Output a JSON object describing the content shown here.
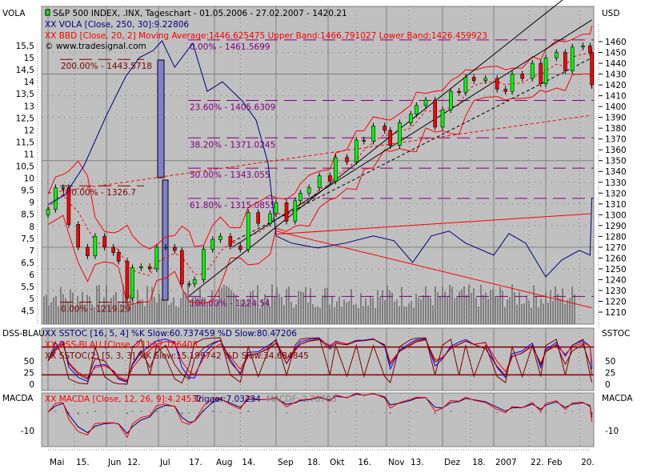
{
  "left_axis_labels": {
    "main": "VOLA",
    "dss": "DSS-BLAU",
    "macd": "MACDA"
  },
  "right_axis_labels": {
    "main": "USD",
    "dss": "SSTOC",
    "macd": "MACDA"
  },
  "legend": {
    "title": "S&P 500 INDEX, .INX, Tageschart - 01.05.2006 - 27.02.2007 - 1420.21",
    "vola": "XX VOLA [Close, 250, 30]:9.22806",
    "bbd": "XX BBD [Close, 20, 2] Moving Average:1446.625475 Upper Band:1466.791027 Lower Band:1426.459923",
    "copyright": "© www.tradesignal.com",
    "sstoc": "XX SSTOC [16, 5, 4] %K Slow:60.737459 %D Slow:80.47206",
    "dss": "XX DSS-BLAU [Close, 21]:62.186408",
    "sstoc2": "XX SSTOC(2) [5, 3, 3] %K Slow:15.199742 %D Slow:34.684845",
    "macd_name": "XX MACDA [Close, 12, 26, 9]:4.24532",
    "macd_trigger": "Trigger:7.03234",
    "macd_f": "MACDF:-2.78703"
  },
  "colors": {
    "panel_bg": "#c0c0c0",
    "up": "#00ff00",
    "down": "#ff0000",
    "vola": "#000080",
    "band": "#ff0000",
    "fib": "#800080",
    "fib_old": "#800000",
    "volume": "#808080",
    "sstoc": "#0000ff",
    "dss": "#ff0000",
    "sstoc2": "#800000",
    "macd": "#ff0000",
    "trigger": "#000080"
  },
  "chart_data": [
    {
      "type": "candlestick",
      "title": "S&P 500 INDEX, .INX, Tageschart",
      "ylabel": "USD",
      "ylim": [
        1205,
        1470
      ],
      "y_ticks": [
        "1460",
        "1450",
        "1440",
        "1430",
        "1420",
        "1410",
        "1400",
        "1390",
        "1380",
        "1370",
        "1360",
        "1350",
        "1340",
        "1330",
        "1320",
        "1310",
        "1300",
        "1290",
        "1280",
        "1270",
        "1260",
        "1250",
        "1240",
        "1230",
        "1220",
        "1210"
      ],
      "secondary_y_ticks": [
        "15,5",
        "15",
        "14,5",
        "14",
        "13,5",
        "13",
        "12,5",
        "12",
        "11,5",
        "11",
        "10,5",
        "10",
        "9,5",
        "9",
        "8,5",
        "8",
        "7,5",
        "7",
        "6,5",
        "6",
        "5,5",
        "5",
        "4,5"
      ],
      "secondary_ylim": [
        4.0,
        16.0
      ],
      "x_ticks": [
        {
          "date": "2006-05-01",
          "label": "Mai"
        },
        {
          "date": "2006-05-15",
          "label": "15."
        },
        {
          "date": "2006-06-01",
          "label": "Jun"
        },
        {
          "date": "2006-06-12",
          "label": "12."
        },
        {
          "date": "2006-07-01",
          "label": "Jul"
        },
        {
          "date": "2006-07-17",
          "label": "17."
        },
        {
          "date": "2006-08-01",
          "label": "Aug"
        },
        {
          "date": "2006-08-14",
          "label": "14."
        },
        {
          "date": "2006-09-01",
          "label": "Sep"
        },
        {
          "date": "2006-09-18",
          "label": "18."
        },
        {
          "date": "2006-10-01",
          "label": "Okt"
        },
        {
          "date": "2006-10-16",
          "label": "16."
        },
        {
          "date": "2006-11-01",
          "label": "Nov"
        },
        {
          "date": "2006-11-13",
          "label": "13."
        },
        {
          "date": "2006-12-01",
          "label": "Dez"
        },
        {
          "date": "2006-12-18",
          "label": "18."
        },
        {
          "date": "2007-01-01",
          "label": "2007"
        },
        {
          "date": "2007-01-22",
          "label": "22."
        },
        {
          "date": "2007-02-01",
          "label": "Feb"
        },
        {
          "date": "2007-02-20",
          "label": "20."
        }
      ],
      "series": [
        {
          "name": "S&P 500 INDEX",
          "dates": [
            "2006-05-01",
            "2006-05-05",
            "2006-05-09",
            "2006-05-12",
            "2006-05-17",
            "2006-05-22",
            "2006-05-26",
            "2006-05-31",
            "2006-06-05",
            "2006-06-08",
            "2006-06-13",
            "2006-06-16",
            "2006-06-21",
            "2006-06-26",
            "2006-06-30",
            "2006-07-05",
            "2006-07-10",
            "2006-07-14",
            "2006-07-18",
            "2006-07-21",
            "2006-07-26",
            "2006-07-31",
            "2006-08-04",
            "2006-08-09",
            "2006-08-14",
            "2006-08-18",
            "2006-08-23",
            "2006-08-29",
            "2006-09-01",
            "2006-09-07",
            "2006-09-12",
            "2006-09-15",
            "2006-09-20",
            "2006-09-26",
            "2006-10-02",
            "2006-10-05",
            "2006-10-11",
            "2006-10-16",
            "2006-10-20",
            "2006-10-25",
            "2006-10-31",
            "2006-11-03",
            "2006-11-08",
            "2006-11-14",
            "2006-11-17",
            "2006-11-22",
            "2006-11-27",
            "2006-12-01",
            "2006-12-06",
            "2006-12-11",
            "2006-12-15",
            "2006-12-20",
            "2006-12-27",
            "2007-01-03",
            "2007-01-08",
            "2007-01-12",
            "2007-01-18",
            "2007-01-24",
            "2007-01-29",
            "2007-02-01",
            "2007-02-07",
            "2007-02-12",
            "2007-02-16",
            "2007-02-22",
            "2007-02-26",
            "2007-02-27"
          ],
          "close": [
            1305,
            1325,
            1325,
            1291,
            1270,
            1262,
            1280,
            1270,
            1265,
            1257,
            1223,
            1251,
            1252,
            1250,
            1270,
            1270,
            1267,
            1236,
            1236,
            1240,
            1268,
            1277,
            1280,
            1271,
            1268,
            1302,
            1292,
            1301,
            1311,
            1294,
            1313,
            1320,
            1325,
            1336,
            1331,
            1353,
            1349,
            1369,
            1368,
            1382,
            1378,
            1364,
            1385,
            1393,
            1401,
            1406,
            1381,
            1397,
            1414,
            1413,
            1427,
            1424,
            1426,
            1416,
            1414,
            1430,
            1426,
            1440,
            1421,
            1445,
            1450,
            1433,
            1455,
            1456,
            1450,
            1420.21
          ]
        },
        {
          "name": "VOLA",
          "dates": [
            "2006-05-01",
            "2006-05-10",
            "2006-05-20",
            "2006-06-01",
            "2006-06-12",
            "2006-06-20",
            "2006-06-28",
            "2006-07-03",
            "2006-07-10",
            "2006-07-20",
            "2006-07-28",
            "2006-08-05",
            "2006-08-15",
            "2006-08-22",
            "2006-08-28",
            "2006-09-01",
            "2006-09-10",
            "2006-09-25",
            "2006-10-10",
            "2006-10-25",
            "2006-11-05",
            "2006-11-15",
            "2006-11-25",
            "2006-12-05",
            "2006-12-15",
            "2007-01-01",
            "2007-01-10",
            "2007-01-20",
            "2007-02-01",
            "2007-02-10",
            "2007-02-20",
            "2007-02-26",
            "2007-02-27"
          ],
          "values": [
            8.9,
            9.3,
            10.5,
            12.6,
            14.2,
            15.0,
            15.3,
            15.7,
            14.6,
            15.6,
            13.6,
            14.0,
            13.2,
            12.4,
            10.6,
            7.6,
            7.3,
            7.1,
            7.3,
            7.6,
            7.4,
            6.5,
            7.6,
            7.8,
            7.3,
            6.8,
            7.7,
            7.3,
            5.9,
            6.6,
            7.0,
            6.8,
            9.2
          ]
        }
      ],
      "fibonacci": [
        {
          "label": "0.00% - 1461.5699",
          "value": 1461.5699
        },
        {
          "label": "23.60% - 1405.6309",
          "value": 1405.6309
        },
        {
          "label": "38.20% - 1371.0245",
          "value": 1371.0245
        },
        {
          "label": "50.00% - 1343.055",
          "value": 1343.055
        },
        {
          "label": "61.80% - 1315.0855",
          "value": 1315.0855
        },
        {
          "label": "100.00% - 1224.54",
          "value": 1224.54
        }
      ],
      "fibonacci_old": [
        {
          "label": "200.00% - 1443.5718",
          "value": 1443.5718
        },
        {
          "label": "100.00% - 1326.7",
          "value": 1326.7
        },
        {
          "label": "0.00% - 1219.29",
          "value": 1219.29
        }
      ],
      "trendlines": [
        {
          "color": "#000000",
          "style": "solid",
          "from": [
            "2006-07-18",
            1225
          ],
          "to": [
            "2007-02-27",
            1520
          ]
        },
        {
          "color": "#000000",
          "style": "solid",
          "from": [
            "2006-08-10",
            1270
          ],
          "to": [
            "2007-02-27",
            1480
          ]
        },
        {
          "color": "#000000",
          "style": "dashed",
          "from": [
            "2006-08-10",
            1275
          ],
          "to": [
            "2007-02-27",
            1445
          ]
        },
        {
          "color": "#ff0000",
          "style": "dashed",
          "from": [
            "2006-05-01",
            1320
          ],
          "to": [
            "2007-02-27",
            1392
          ]
        },
        {
          "color": "#ff0000",
          "style": "solid",
          "from": [
            "2006-09-01",
            1282
          ],
          "to": [
            "2007-02-27",
            1301
          ]
        },
        {
          "color": "#ff0000",
          "style": "solid",
          "from": [
            "2006-09-01",
            1285
          ],
          "to": [
            "2007-02-27",
            1214
          ]
        }
      ]
    },
    {
      "type": "line",
      "title": "SSTOC / DSS-BLAU",
      "y_ticks": [
        "50",
        "25",
        "0"
      ],
      "ylim": [
        0,
        100
      ],
      "levels": [
        80,
        20
      ]
    },
    {
      "type": "line",
      "title": "MACDA",
      "y_ticks": [
        "-10"
      ]
    }
  ]
}
